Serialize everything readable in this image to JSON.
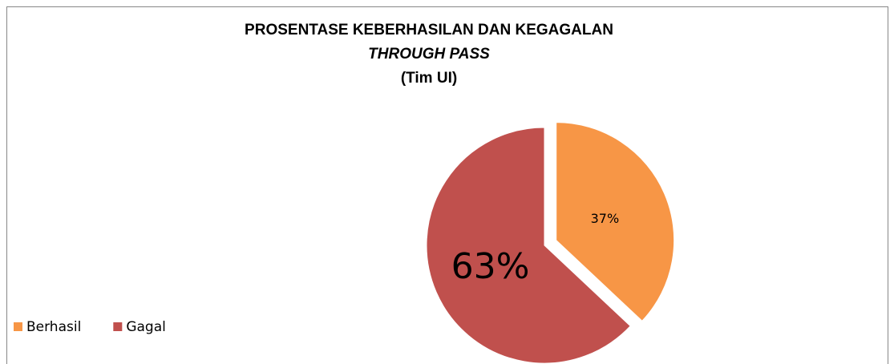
{
  "chart_data": {
    "type": "pie",
    "title": [
      "PROSENTASE KEBERHASILAN DAN KEGAGALAN",
      "THROUGH PASS",
      "(Tim UI)"
    ],
    "categories": [
      "Berhasil",
      "Gagal"
    ],
    "values": [
      37,
      63
    ],
    "value_labels": [
      "37%",
      "63%"
    ],
    "colors": [
      "#f79646",
      "#c0504d"
    ],
    "exploded": [
      true,
      false
    ],
    "legend": "bottom-left"
  }
}
